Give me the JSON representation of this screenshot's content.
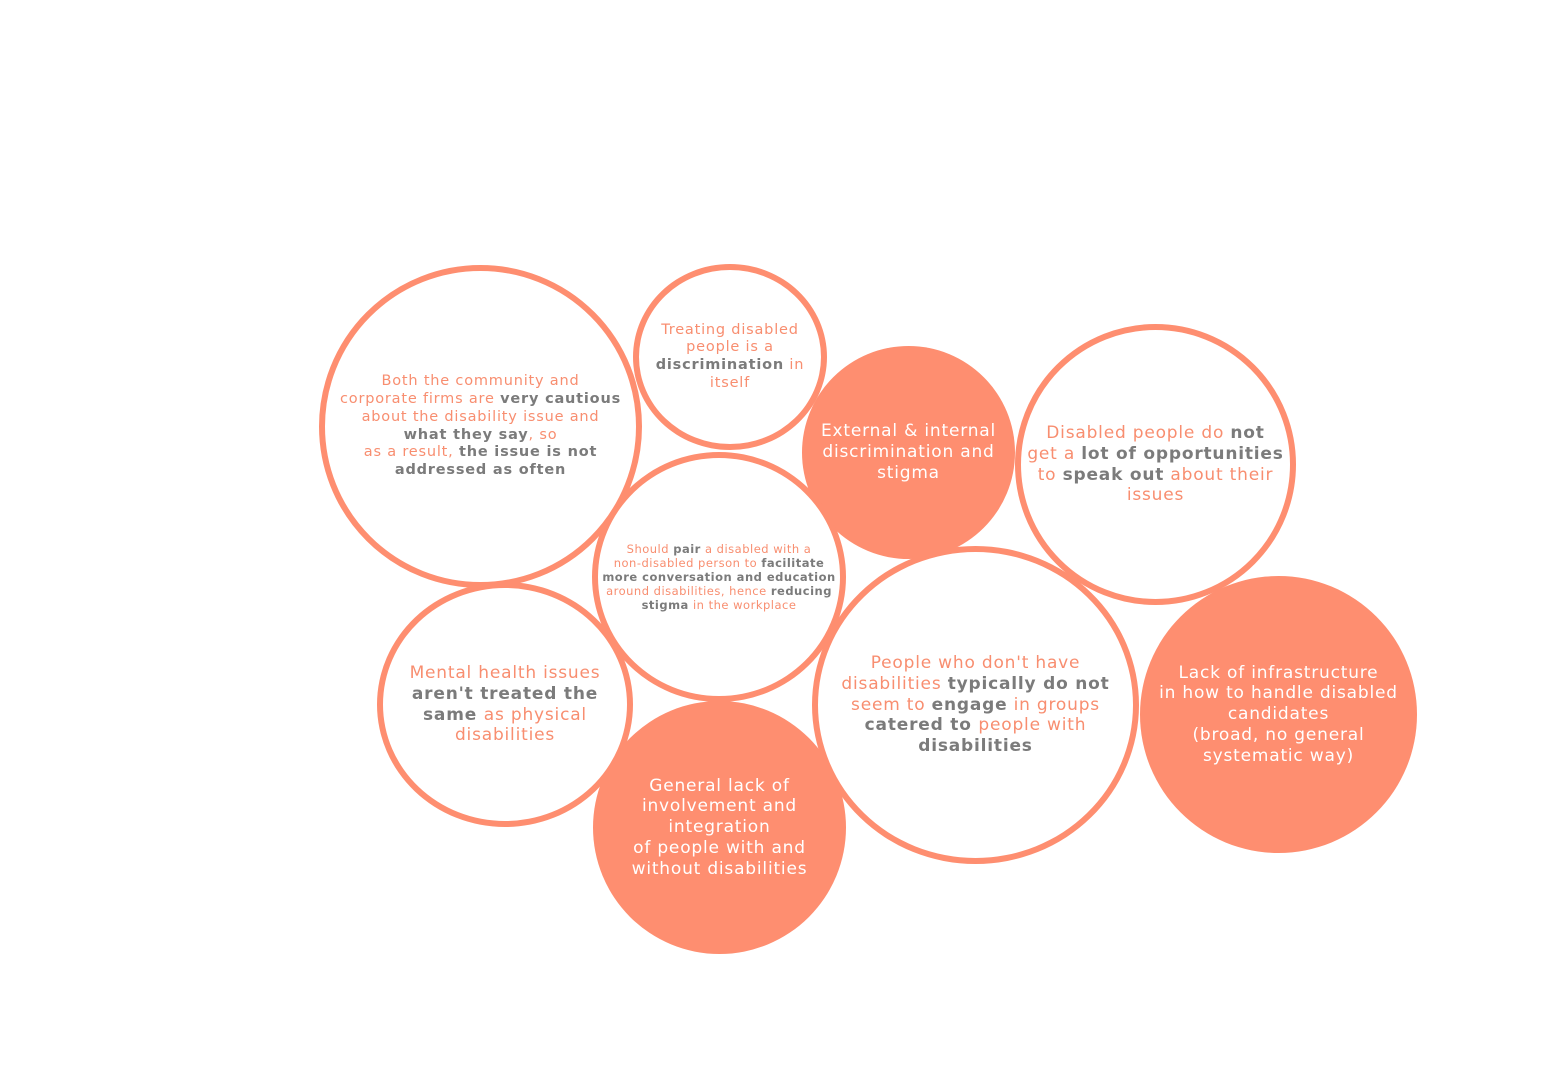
{
  "bubbles": {
    "cautious": {
      "l1a": "Both the community and",
      "l2a": "corporate firms are ",
      "l2b": "very cautious",
      "l3a": "about the disability issue and",
      "l4a": "what they say",
      "l4b": ", so",
      "l5a": "as a result, ",
      "l5b": "the issue is not",
      "l6a": "addressed as often"
    },
    "treating": {
      "l1a": "Treating disabled",
      "l2a": "people is a",
      "l3a": "discrimination",
      "l3b": " in",
      "l4a": "itself"
    },
    "external": {
      "l1": "External & internal",
      "l2": "discrimination and",
      "l3": "stigma"
    },
    "opportunities": {
      "l1a": "Disabled people do ",
      "l1b": "not",
      "l2a": "get a ",
      "l2b": "lot of opportunities",
      "l3a": "to ",
      "l3b": "speak out",
      "l3c": " about their",
      "l4a": "issues"
    },
    "pair": {
      "l1a": "Should ",
      "l1b": "pair",
      "l1c": " a disabled with a",
      "l2a": "non-disabled person to ",
      "l2b": "facilitate",
      "l3a": "more conversation and education",
      "l4a": "around disabilities, hence ",
      "l4b": "reducing",
      "l5a": "stigma",
      "l5b": " in the workplace"
    },
    "mental": {
      "l1a": "Mental health issues",
      "l2a": "aren't treated the",
      "l3a": "same ",
      "l3b": "as physical",
      "l4a": "disabilities"
    },
    "engage": {
      "l1a": "People who don't have",
      "l2a": "disabilities ",
      "l2b": "typically do not",
      "l3a": "seem to ",
      "l3b": "engage",
      "l3c": " in groups",
      "l4a": "catered to ",
      "l4b": "people with",
      "l5a": "disabilities"
    },
    "infrastructure": {
      "l1": "Lack of infrastructure",
      "l2": "in how to handle disabled",
      "l3": "candidates",
      "l4": "(broad, no general",
      "l5": "systematic way)"
    },
    "involvement": {
      "l1": "General lack of",
      "l2": "involvement and",
      "l3": "integration",
      "l4": "of people with and",
      "l5": "without disabilities"
    }
  },
  "colors": {
    "accent": "#fe8e70",
    "grey_text": "#7b7b7b",
    "white": "#ffffff"
  }
}
